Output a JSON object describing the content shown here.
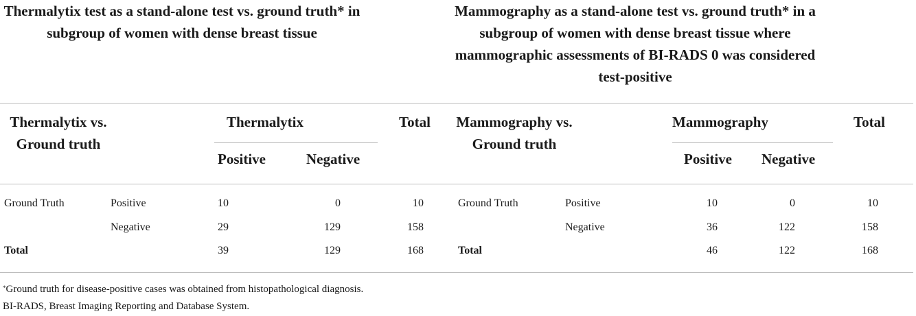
{
  "left": {
    "title": "Thermalytix test as a stand-alone test vs. ground truth* in subgroup of women with dense breast tissue",
    "corner_header": "Thermalytix vs. Ground truth",
    "test_header": "Thermalytix",
    "col_positive": "Positive",
    "col_negative": "Negative",
    "col_total": "Total",
    "rows": [
      {
        "group": "Ground Truth",
        "label": "Positive",
        "positive": "10",
        "negative": "0",
        "total": "10"
      },
      {
        "group": "",
        "label": "Negative",
        "positive": "29",
        "negative": "129",
        "total": "158"
      },
      {
        "group": "Total",
        "label": "",
        "positive": "39",
        "negative": "129",
        "total": "168"
      }
    ]
  },
  "right": {
    "title": "Mammography as a stand-alone test vs. ground truth* in a subgroup of women with dense breast tissue where mammographic assessments of BI-RADS 0 was considered test-positive",
    "corner_header": "Mammography vs. Ground truth",
    "test_header": "Mammography",
    "col_positive": "Positive",
    "col_negative": "Negative",
    "col_total": "Total",
    "rows": [
      {
        "group": "Ground Truth",
        "label": "Positive",
        "positive": "10",
        "negative": "0",
        "total": "10"
      },
      {
        "group": "",
        "label": "Negative",
        "positive": "36",
        "negative": "122",
        "total": "158"
      },
      {
        "group": "Total",
        "label": "",
        "positive": "46",
        "negative": "122",
        "total": "168"
      }
    ]
  },
  "footnotes": {
    "star_mark": "*",
    "star_note": "Ground truth for disease-positive cases was obtained from histopathological diagnosis.",
    "abbrev_note": "BI-RADS, Breast Imaging Reporting and Database System."
  }
}
